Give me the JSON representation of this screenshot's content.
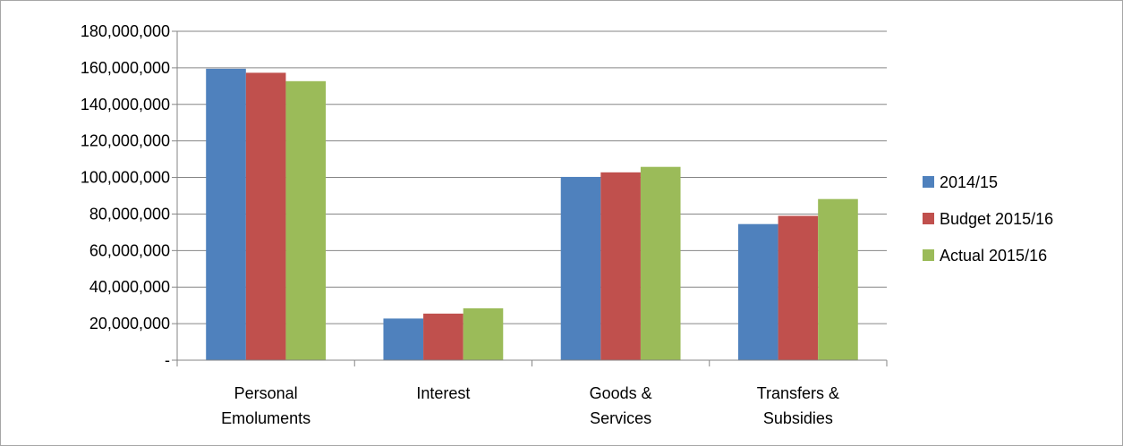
{
  "chart_data": {
    "type": "bar",
    "categories": [
      [
        "Personal",
        "Emoluments"
      ],
      [
        "Interest"
      ],
      [
        "Goods &",
        "Services"
      ],
      [
        "Transfers &",
        "Subsidies"
      ]
    ],
    "series": [
      {
        "name": "2014/15",
        "color": "#4f81bd",
        "values": [
          159500000,
          22800000,
          100300000,
          74500000
        ]
      },
      {
        "name": "Budget 2015/16",
        "color": "#c0504d",
        "values": [
          157300000,
          25500000,
          102800000,
          79000000
        ]
      },
      {
        "name": "Actual 2015/16",
        "color": "#9bbb59",
        "values": [
          152700000,
          28400000,
          105800000,
          88200000
        ]
      }
    ],
    "ylim": [
      0,
      180000000
    ],
    "yticks": [
      0,
      20000000,
      40000000,
      60000000,
      80000000,
      100000000,
      120000000,
      140000000,
      160000000,
      180000000
    ],
    "ytick_labels": [
      "-",
      "20,000,000",
      "40,000,000",
      "60,000,000",
      "80,000,000",
      "100,000,000",
      "120,000,000",
      "140,000,000",
      "160,000,000",
      "180,000,000"
    ],
    "grid": true,
    "legend_position": "right"
  }
}
